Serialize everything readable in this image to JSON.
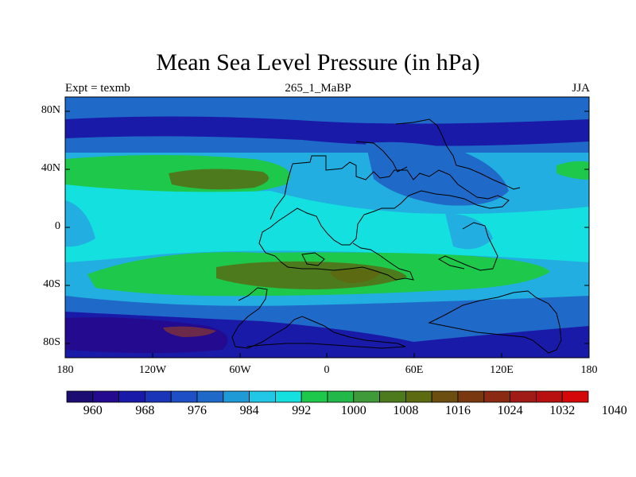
{
  "title": "Mean Sea Level Pressure (in hPa)",
  "subtitle_left": "Expt = texmb",
  "subtitle_center": "265_1_MaBP",
  "subtitle_right": "JJA",
  "lat_ticks": [
    "80N",
    "40N",
    "0",
    "40S",
    "80S"
  ],
  "lon_ticks": [
    "180",
    "120W",
    "60W",
    "0",
    "60E",
    "120E",
    "180"
  ],
  "colorbar": {
    "colors": [
      "#1c0d73",
      "#230a8f",
      "#1a1aa8",
      "#1b35b8",
      "#1f4fc4",
      "#1f6ac8",
      "#1e9ad6",
      "#22c7e6",
      "#14e0e0",
      "#1ec84a",
      "#22b84a",
      "#3f9a3a",
      "#4e7a1e",
      "#5c6a12",
      "#6b4e10",
      "#7a3810",
      "#8a2a12",
      "#a01a16",
      "#b81010",
      "#d40808"
    ],
    "labels": [
      "960",
      "968",
      "976",
      "984",
      "992",
      "1000",
      "1008",
      "1016",
      "1024",
      "1032",
      "1040"
    ]
  },
  "colors": {
    "deep_low": "#1a1aa8",
    "low": "#1f6ac8",
    "mid_low": "#22aee0",
    "cyan": "#14e0e0",
    "high": "#1ec84a",
    "higher": "#4e7a1e",
    "highest": "#7a3810"
  }
}
